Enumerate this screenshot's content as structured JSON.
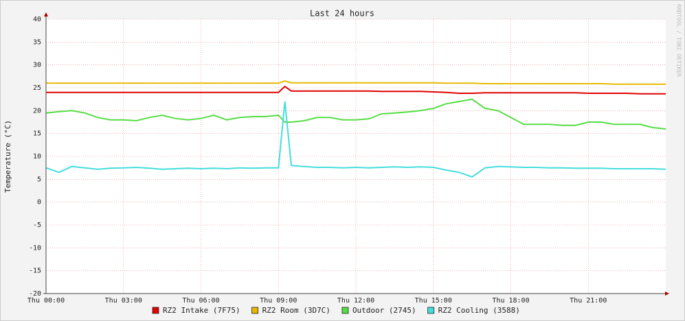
{
  "chart_data": {
    "type": "line",
    "title": "Last 24 hours",
    "y_label": "Temperature (°C)",
    "watermark": "RRDTOOL / TOBI OETIKER",
    "x": [
      0,
      0.5,
      1,
      1.5,
      2,
      2.5,
      3,
      3.5,
      4,
      4.5,
      5,
      5.5,
      6,
      6.5,
      7,
      7.5,
      8,
      8.5,
      9,
      9.25,
      9.5,
      10,
      10.5,
      11,
      11.5,
      12,
      12.5,
      13,
      13.5,
      14,
      14.5,
      15,
      15.5,
      16,
      16.5,
      17,
      17.5,
      18,
      18.5,
      19,
      19.5,
      20,
      20.5,
      21,
      21.5,
      22,
      22.5,
      23,
      23.5,
      24
    ],
    "xlim": [
      0,
      24
    ],
    "xticks": [
      {
        "value": 0,
        "label": "Thu 00:00"
      },
      {
        "value": 3,
        "label": "Thu 03:00"
      },
      {
        "value": 6,
        "label": "Thu 06:00"
      },
      {
        "value": 9,
        "label": "Thu 09:00"
      },
      {
        "value": 12,
        "label": "Thu 12:00"
      },
      {
        "value": 15,
        "label": "Thu 15:00"
      },
      {
        "value": 18,
        "label": "Thu 18:00"
      },
      {
        "value": 21,
        "label": "Thu 21:00"
      }
    ],
    "ylim": [
      -20,
      40
    ],
    "yticks": [
      -20,
      -15,
      -10,
      -5,
      0,
      5,
      10,
      15,
      20,
      25,
      30,
      35,
      40
    ],
    "grid": true,
    "series": [
      {
        "name": "RZ2 Intake (7F75)",
        "color": "#e00000",
        "values": [
          24,
          24,
          24,
          24,
          24,
          24,
          24,
          24,
          24,
          24,
          24,
          24,
          24,
          24,
          24,
          24,
          24,
          24,
          24,
          25.3,
          24.3,
          24.3,
          24.3,
          24.3,
          24.3,
          24.3,
          24.3,
          24.2,
          24.2,
          24.2,
          24.2,
          24.1,
          24,
          23.8,
          23.8,
          23.9,
          23.9,
          23.9,
          23.9,
          23.9,
          23.9,
          23.9,
          23.9,
          23.8,
          23.8,
          23.8,
          23.8,
          23.7,
          23.7,
          23.7
        ]
      },
      {
        "name": "RZ2 Room (3D7C)",
        "color": "#e8b800",
        "values": [
          26,
          26,
          26,
          26,
          26,
          26,
          26,
          26,
          26,
          26,
          26,
          26,
          26,
          26,
          26,
          26,
          26,
          26,
          26,
          26.5,
          26.1,
          26.1,
          26.1,
          26.1,
          26.1,
          26.1,
          26.1,
          26.1,
          26.1,
          26.1,
          26.1,
          26.1,
          26,
          26,
          26,
          25.9,
          25.9,
          25.9,
          25.9,
          25.9,
          25.9,
          25.9,
          25.9,
          25.9,
          25.9,
          25.8,
          25.8,
          25.8,
          25.8,
          25.8
        ]
      },
      {
        "name": "Outdoor (2745)",
        "color": "#55dd44",
        "values": [
          19.5,
          19.8,
          20,
          19.5,
          18.5,
          18,
          18,
          17.8,
          18.5,
          19,
          18.3,
          18,
          18.3,
          19,
          18,
          18.5,
          18.7,
          18.7,
          19,
          17.5,
          17.5,
          17.8,
          18.5,
          18.5,
          18,
          18,
          18.2,
          19.3,
          19.5,
          19.7,
          20,
          20.5,
          21.5,
          22,
          22.5,
          20.5,
          20,
          18.5,
          17,
          17,
          17,
          16.8,
          16.8,
          17.5,
          17.5,
          17,
          17,
          17,
          16.3,
          16
        ]
      },
      {
        "name": "RZ2 Cooling (3588)",
        "color": "#44dddd",
        "values": [
          7.5,
          6.5,
          7.8,
          7.5,
          7.2,
          7.4,
          7.5,
          7.6,
          7.4,
          7.2,
          7.3,
          7.4,
          7.3,
          7.4,
          7.3,
          7.5,
          7.4,
          7.5,
          7.5,
          22,
          8,
          7.8,
          7.6,
          7.6,
          7.5,
          7.6,
          7.5,
          7.6,
          7.7,
          7.6,
          7.7,
          7.6,
          7,
          6.5,
          5.5,
          7.5,
          7.8,
          7.7,
          7.6,
          7.6,
          7.5,
          7.5,
          7.4,
          7.4,
          7.4,
          7.3,
          7.3,
          7.3,
          7.3,
          7.2
        ]
      }
    ]
  }
}
